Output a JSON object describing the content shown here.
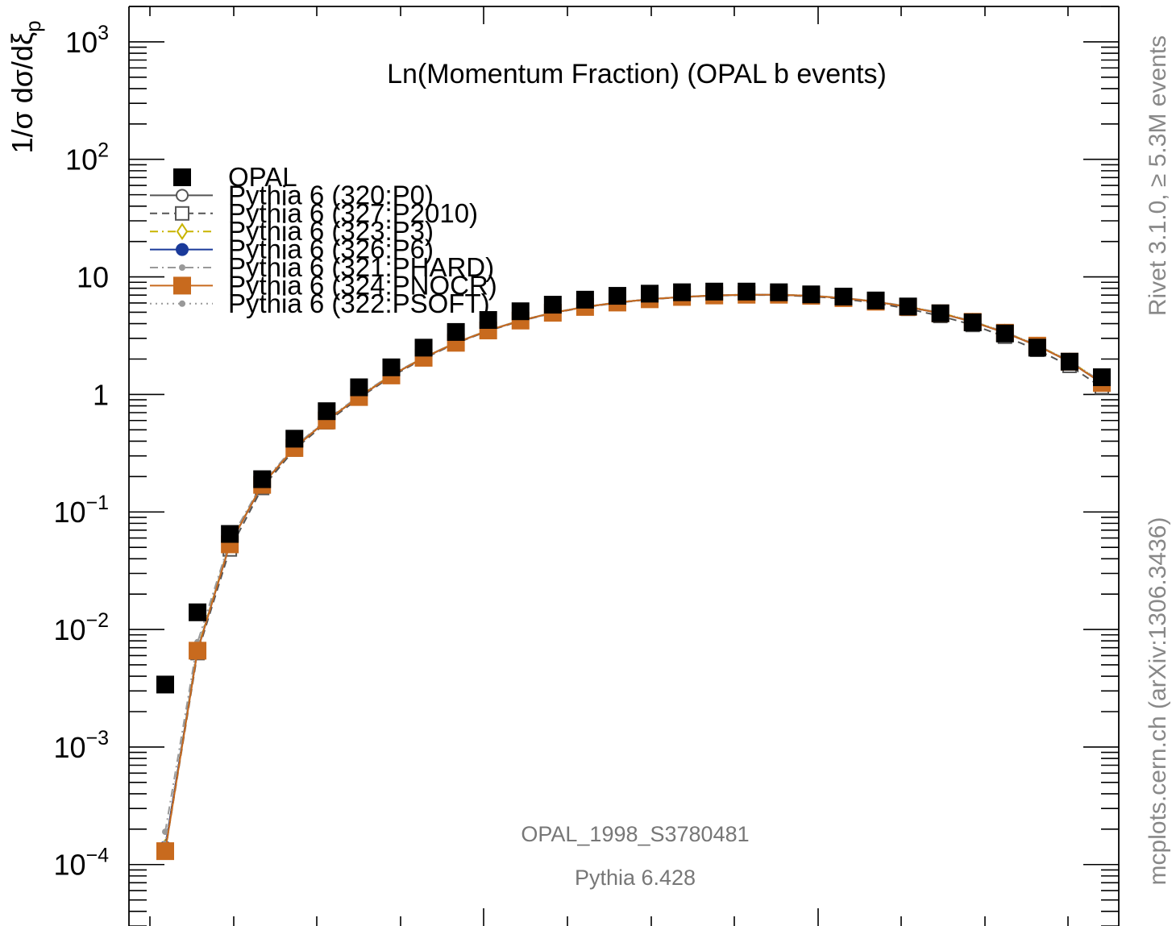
{
  "chart_data": {
    "type": "line",
    "title": "Ln(Momentum Fraction) (OPAL b events)",
    "ylabel": "1/σ dσ/dξ_p",
    "xlabel": "",
    "y_scale": "log",
    "ylim": [
      3e-05,
      2000
    ],
    "y_ticks": [
      {
        "value": 0.0001,
        "base": "10",
        "exp": "−4"
      },
      {
        "value": 0.001,
        "base": "10",
        "exp": "−3"
      },
      {
        "value": 0.01,
        "base": "10",
        "exp": "−2"
      },
      {
        "value": 0.1,
        "base": "10",
        "exp": "−1"
      },
      {
        "value": 1,
        "base": "1",
        "exp": ""
      },
      {
        "value": 10,
        "base": "10",
        "exp": ""
      },
      {
        "value": 100,
        "base": "10",
        "exp": "2"
      },
      {
        "value": 1000,
        "base": "10",
        "exp": "3"
      }
    ],
    "x": [
      1,
      2,
      3,
      4,
      5,
      6,
      7,
      8,
      9,
      10,
      11,
      12,
      13,
      14,
      15,
      16,
      17,
      18,
      19,
      20,
      21,
      22,
      23,
      24,
      25,
      26,
      27,
      28,
      29,
      30
    ],
    "grid": false,
    "legend_position": "top-left",
    "series": [
      {
        "name": "OPAL",
        "color": "#000000",
        "marker": "square-filled",
        "style": "markers",
        "values": [
          0.0034,
          0.014,
          0.065,
          0.19,
          0.42,
          0.72,
          1.15,
          1.7,
          2.5,
          3.4,
          4.3,
          5.1,
          5.8,
          6.4,
          6.9,
          7.2,
          7.4,
          7.5,
          7.5,
          7.4,
          7.1,
          6.8,
          6.3,
          5.6,
          4.9,
          4.1,
          3.3,
          2.5,
          1.9,
          1.4
        ]
      },
      {
        "name": "Pythia 6 (320:P0)",
        "color": "#555555",
        "marker": "circle-open",
        "style": "solid",
        "values": [
          0.00014,
          0.0067,
          0.053,
          0.17,
          0.35,
          0.6,
          0.95,
          1.45,
          2.05,
          2.75,
          3.5,
          4.25,
          4.95,
          5.55,
          6.05,
          6.45,
          6.75,
          6.95,
          7.05,
          7.05,
          6.9,
          6.6,
          6.15,
          5.55,
          4.9,
          4.15,
          3.35,
          2.6,
          1.9,
          1.25
        ]
      },
      {
        "name": "Pythia 6 (327:P2010)",
        "color": "#555555",
        "marker": "square-open",
        "style": "dashed",
        "values": [
          0.00013,
          0.0063,
          0.048,
          0.16,
          0.34,
          0.58,
          0.93,
          1.42,
          2.02,
          2.72,
          3.47,
          4.22,
          4.92,
          5.52,
          6.02,
          6.42,
          6.72,
          6.92,
          7.02,
          7.0,
          6.82,
          6.5,
          6.0,
          5.35,
          4.65,
          3.9,
          3.1,
          2.4,
          1.75,
          1.15
        ]
      },
      {
        "name": "Pythia 6 (323:P3)",
        "color": "#c8b400",
        "marker": "diamond-open",
        "style": "dashdot",
        "values": [
          0.00014,
          0.0068,
          0.054,
          0.17,
          0.35,
          0.6,
          0.96,
          1.46,
          2.06,
          2.76,
          3.51,
          4.26,
          4.96,
          5.56,
          6.06,
          6.46,
          6.76,
          6.96,
          7.06,
          7.06,
          6.92,
          6.62,
          6.18,
          5.58,
          4.94,
          4.18,
          3.38,
          2.62,
          1.92,
          1.27
        ]
      },
      {
        "name": "Pythia 6 (326:P6)",
        "color": "#1a3a9a",
        "marker": "circle-filled",
        "style": "solid",
        "values": [
          0.00014,
          0.0066,
          0.053,
          0.17,
          0.35,
          0.6,
          0.95,
          1.45,
          2.05,
          2.75,
          3.5,
          4.25,
          4.95,
          5.55,
          6.05,
          6.45,
          6.75,
          6.95,
          7.05,
          7.05,
          6.9,
          6.6,
          6.15,
          5.55,
          4.9,
          4.15,
          3.35,
          2.6,
          1.9,
          1.25
        ]
      },
      {
        "name": "Pythia 6 (321:PHARD)",
        "color": "#999999",
        "marker": "dot",
        "style": "dashdot",
        "values": [
          0.00019,
          0.0078,
          0.057,
          0.175,
          0.36,
          0.61,
          0.97,
          1.47,
          2.07,
          2.77,
          3.52,
          4.27,
          4.97,
          5.57,
          6.07,
          6.47,
          6.77,
          6.97,
          7.07,
          7.07,
          6.93,
          6.63,
          6.2,
          5.6,
          4.95,
          4.2,
          3.4,
          2.63,
          1.93,
          1.28
        ]
      },
      {
        "name": "Pythia 6 (324:PNOCR)",
        "color": "#c86a1e",
        "marker": "square-filled",
        "style": "solid",
        "values": [
          0.00013,
          0.0066,
          0.053,
          0.17,
          0.35,
          0.6,
          0.95,
          1.45,
          2.05,
          2.75,
          3.5,
          4.25,
          4.95,
          5.55,
          6.05,
          6.45,
          6.75,
          6.95,
          7.05,
          7.05,
          6.9,
          6.6,
          6.15,
          5.55,
          4.9,
          4.15,
          3.35,
          2.6,
          1.9,
          1.25
        ]
      },
      {
        "name": "Pythia 6 (322:PSOFT)",
        "color": "#999999",
        "marker": "dot",
        "style": "dotted",
        "values": [
          0.00015,
          0.0072,
          0.055,
          0.172,
          0.355,
          0.605,
          0.96,
          1.46,
          2.06,
          2.76,
          3.51,
          4.26,
          4.96,
          5.56,
          6.06,
          6.46,
          6.76,
          6.96,
          7.06,
          7.06,
          6.91,
          6.61,
          6.17,
          5.57,
          4.92,
          4.17,
          3.37,
          2.61,
          1.91,
          1.26
        ]
      }
    ]
  },
  "annotations": {
    "analysis": "OPAL_1998_S3780481",
    "generator": "Pythia 6.428",
    "rivet_label": "Rivet 3.1.0, ≥ 5.3M events",
    "site_label": "mcplots.cern.ch (arXiv:1306.3436)"
  }
}
